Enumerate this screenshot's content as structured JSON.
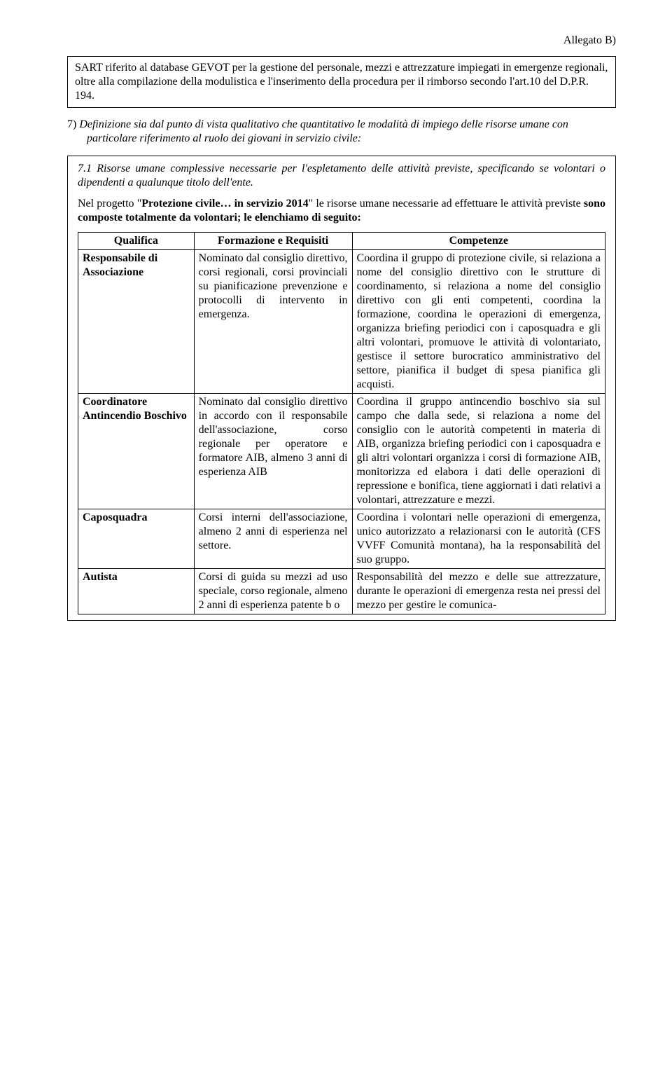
{
  "header": {
    "right": "Allegato B)"
  },
  "intro_box": "SART riferito al database GEVOT per la gestione del personale, mezzi e attrezzature impiegati in emergenze regionali, oltre alla compilazione della modulistica e l'inserimento della procedura per il rimborso secondo l'art.10 del D.P.R. 194.",
  "section7": {
    "num": "7)",
    "text": "Definizione sia dal punto di vista qualitativo che quantitativo le modalità di impiego delle risorse umane con particolare riferimento al ruolo dei giovani in servizio civile:"
  },
  "inner": {
    "p1": "7.1 Risorse umane complessive necessarie per l'espletamento delle attività previste, specificando se volontari o dipendenti a qualunque titolo dell'ente.",
    "p2_a": "Nel progetto \"",
    "p2_b": "Protezione civile… in servizio 2014",
    "p2_c": "\" le risorse umane necessarie ad effettuare le attività previste ",
    "p2_d": "sono composte totalmente da volontari; le elenchiamo di seguito:"
  },
  "table": {
    "headers": [
      "Qualifica",
      "Formazione e Requisiti",
      "Competenze"
    ],
    "rows": [
      {
        "q": "Responsabile di Associazione",
        "f": "Nominato dal consiglio direttivo, corsi regionali, corsi provinciali su pianificazione prevenzione e protocolli di intervento in emergenza.",
        "c": "Coordina il gruppo di protezione civile, si relaziona a nome del consiglio direttivo con le strutture di coordinamento, si relaziona a nome del consiglio direttivo con gli enti competenti, coordina la formazione, coordina le operazioni di emergenza, organizza briefing periodici con i caposquadra e gli altri volontari, promuove le attività di volontariato, gestisce il settore burocratico amministrativo del settore, pianifica il budget di spesa pianifica gli acquisti."
      },
      {
        "q": "Coordinatore Antincendio Boschivo",
        "f": "Nominato dal consiglio direttivo in accordo con il responsabile dell'associazione, corso regionale per operatore e formatore AIB, almeno 3 anni di esperienza AIB",
        "c": "Coordina il gruppo antincendio boschivo sia sul campo che dalla sede, si relaziona a nome del consiglio con le autorità competenti in materia di AIB,\norganizza briefing periodici con i caposquadra e gli altri volontari organizza i corsi di formazione AIB, monitorizza ed elabora i dati delle operazioni di repressione e bonifica, tiene aggiornati i dati relativi a volontari, attrezzature e mezzi."
      },
      {
        "q": "Caposquadra",
        "f": "Corsi interni dell'associazione, almeno 2 anni di esperienza nel settore.",
        "c": "Coordina i volontari nelle operazioni di emergenza, unico autorizzato a relazionarsi con le autorità (CFS VVFF Comunità montana), ha la responsabilità del suo gruppo."
      },
      {
        "q": "Autista",
        "f": "Corsi di guida su mezzi ad uso speciale, corso regionale, almeno 2 anni di esperienza patente b o",
        "c": "Responsabilità del mezzo e delle sue attrezzature, durante le operazioni di emergenza resta nei pressi del mezzo per gestire le comunica-"
      }
    ]
  }
}
